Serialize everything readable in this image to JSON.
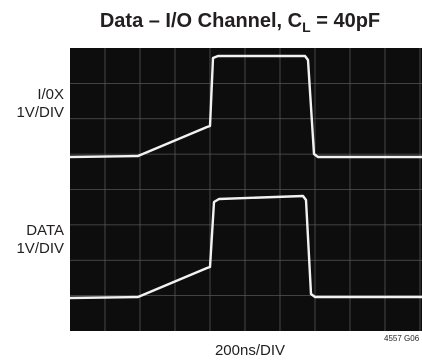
{
  "title": {
    "main": "Data – I/O Channel, C",
    "subscript": "L",
    "tail": " = 40pF"
  },
  "channels": [
    {
      "name": "I/0X",
      "scale": "1V/DIV"
    },
    {
      "name": "DATA",
      "scale": "1V/DIV"
    }
  ],
  "time_scale": "200ns/DIV",
  "figure_id": "4557 G06"
}
